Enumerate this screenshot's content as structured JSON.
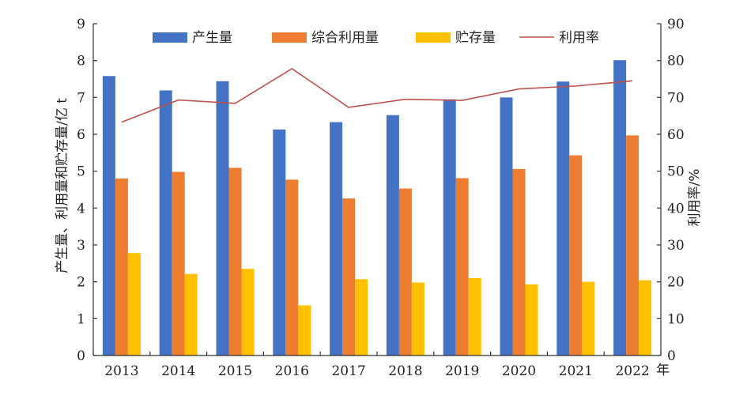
{
  "chart_data": {
    "type": "bar",
    "categories": [
      "2013",
      "2014",
      "2015",
      "2016",
      "2017",
      "2018",
      "2019",
      "2020",
      "2021",
      "2022"
    ],
    "x_unit": "年",
    "series": [
      {
        "name": "产生量",
        "type": "bar",
        "axis": "left",
        "color": "#4472C4",
        "values": [
          7.58,
          7.19,
          7.44,
          6.13,
          6.33,
          6.52,
          6.95,
          7.0,
          7.43,
          8.01
        ]
      },
      {
        "name": "综合利用量",
        "type": "bar",
        "axis": "left",
        "color": "#ED7D31",
        "values": [
          4.8,
          4.98,
          5.09,
          4.77,
          4.26,
          4.53,
          4.81,
          5.06,
          5.43,
          5.97
        ]
      },
      {
        "name": "贮存量",
        "type": "bar",
        "axis": "left",
        "color": "#FFC000",
        "values": [
          2.78,
          2.21,
          2.35,
          1.36,
          2.07,
          1.98,
          2.1,
          1.93,
          2.0,
          2.04
        ]
      },
      {
        "name": "利用率",
        "type": "line",
        "axis": "right",
        "color": "#C0504D",
        "values": [
          63.3,
          69.3,
          68.4,
          77.8,
          67.3,
          69.5,
          69.2,
          72.3,
          73.1,
          74.5
        ]
      }
    ],
    "ylabel": "产生量、利用量和贮存量/亿 t",
    "y2label": "利用率/%",
    "ylim": [
      0,
      9
    ],
    "y2lim": [
      0,
      90
    ],
    "yticks": [
      0,
      1,
      2,
      3,
      4,
      5,
      6,
      7,
      8,
      9
    ],
    "y2ticks": [
      0,
      10,
      20,
      30,
      40,
      50,
      60,
      70,
      80,
      90
    ],
    "grid": false,
    "legend_position": "top"
  }
}
